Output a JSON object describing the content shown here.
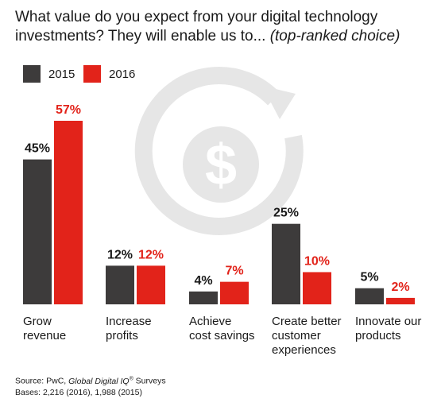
{
  "header": {
    "title_main": "What value do you expect from your digital technology investments? They will enable us to...",
    "title_note": "(top-ranked choice)"
  },
  "colors": {
    "s2015": "#3d3b3b",
    "s2016": "#e2231a",
    "watermark": "#e6e6e6"
  },
  "watermark_icon": "dollar-cycle-icon",
  "chart_data": {
    "type": "bar",
    "categories": [
      "Grow revenue",
      "Increase profits",
      "Achieve cost savings",
      "Create better customer experiences",
      "Innovate our products"
    ],
    "series": [
      {
        "name": "2015",
        "values": [
          45,
          12,
          4,
          25,
          5
        ],
        "labels": [
          "45%",
          "12%",
          "4%",
          "25%",
          "5%"
        ]
      },
      {
        "name": "2016",
        "values": [
          57,
          12,
          7,
          10,
          2
        ],
        "labels": [
          "57%",
          "12%",
          "7%",
          "10%",
          "2%"
        ]
      }
    ],
    "ylim": [
      0,
      57
    ]
  },
  "category_lines": [
    [
      "Grow",
      "revenue"
    ],
    [
      "Increase",
      "profits"
    ],
    [
      "Achieve",
      "cost savings"
    ],
    [
      "Create better",
      "customer",
      "experiences"
    ],
    [
      "Innovate our",
      "products"
    ]
  ],
  "footer": {
    "source_prefix": "Source: PwC,",
    "source_title": "Global Digital IQ",
    "source_mark": "®",
    "source_suffix": "Surveys",
    "bases": "Bases: 2,216 (2016), 1,988 (2015)"
  }
}
